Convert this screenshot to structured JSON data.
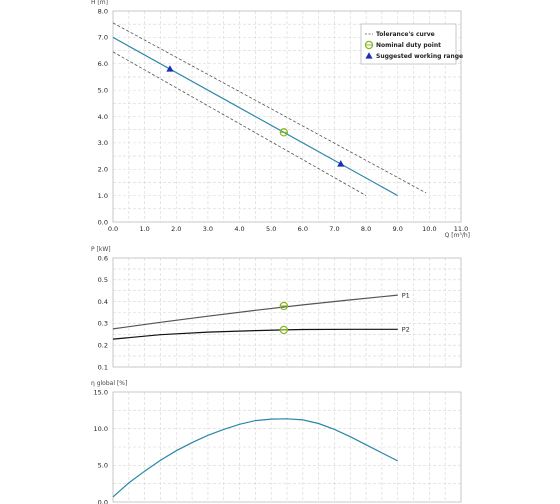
{
  "chart_data": [
    {
      "type": "line",
      "ylabel": "H [m]",
      "xlabel": "Q [m³/h]",
      "xlim": [
        0,
        11
      ],
      "ylim": [
        0,
        8
      ],
      "xticks": [
        "0.0",
        "1.0",
        "2.0",
        "3.0",
        "4.0",
        "5.0",
        "6.0",
        "7.0",
        "8.0",
        "9.0",
        "10.0",
        "11.0"
      ],
      "yticks": [
        "0.0",
        "1.0",
        "2.0",
        "3.0",
        "4.0",
        "5.0",
        "6.0",
        "7.0",
        "8.0"
      ],
      "grid": true,
      "legend_position": "top-right",
      "legend": [
        "Tolerance's curve",
        "Nominal duty point",
        "Suggested working range"
      ],
      "series": [
        {
          "type": "line",
          "color": "#2a86aa",
          "x": [
            0,
            9.0
          ],
          "y": [
            7.0,
            1.0
          ]
        },
        {
          "type": "dashed",
          "color": "#555555",
          "x": [
            0,
            9.9
          ],
          "y": [
            7.55,
            1.1
          ]
        },
        {
          "type": "dashed",
          "color": "#555555",
          "x": [
            0,
            8.0
          ],
          "y": [
            6.45,
            1.0
          ]
        }
      ],
      "nominal_point": {
        "x": 5.4,
        "y": 3.4,
        "color": "#88b520"
      },
      "working_range": [
        {
          "x": 1.8,
          "y": 5.8
        },
        {
          "x": 7.2,
          "y": 2.2
        }
      ],
      "working_range_color": "#1a2fb8"
    },
    {
      "type": "line",
      "ylabel": "P [kW]",
      "xlim": [
        0,
        11
      ],
      "ylim": [
        0.1,
        0.6
      ],
      "yticks": [
        "0.1",
        "0.2",
        "0.3",
        "0.4",
        "0.5",
        "0.6"
      ],
      "grid": true,
      "series": [
        {
          "name": "P1",
          "color": "#555555",
          "x": [
            0,
            1.5,
            3,
            4.5,
            6,
            7.5,
            9
          ],
          "y": [
            0.275,
            0.305,
            0.333,
            0.36,
            0.385,
            0.408,
            0.43
          ]
        },
        {
          "name": "P2",
          "color": "#111111",
          "x": [
            0,
            1.5,
            3,
            4.5,
            5.4,
            6,
            7.5,
            9
          ],
          "y": [
            0.228,
            0.248,
            0.26,
            0.267,
            0.27,
            0.272,
            0.273,
            0.273
          ]
        }
      ],
      "nominal_points": [
        {
          "x": 5.4,
          "y": 0.38
        },
        {
          "x": 5.4,
          "y": 0.27
        }
      ],
      "nominal_color": "#88b520"
    },
    {
      "type": "line",
      "ylabel": "η global [%]",
      "xlim": [
        0,
        11
      ],
      "ylim": [
        0,
        15
      ],
      "yticks": [
        "0.0",
        "5.0",
        "10.0",
        "15.0"
      ],
      "grid": true,
      "series": [
        {
          "color": "#2a86aa",
          "x": [
            0,
            0.5,
            1,
            1.5,
            2,
            2.5,
            3,
            3.5,
            4,
            4.5,
            5,
            5.5,
            6,
            6.5,
            7,
            7.5,
            8,
            8.5,
            9
          ],
          "y": [
            0.7,
            2.6,
            4.2,
            5.7,
            7.0,
            8.1,
            9.1,
            9.9,
            10.6,
            11.1,
            11.3,
            11.35,
            11.2,
            10.7,
            9.9,
            8.9,
            7.8,
            6.7,
            5.6
          ]
        }
      ]
    }
  ]
}
